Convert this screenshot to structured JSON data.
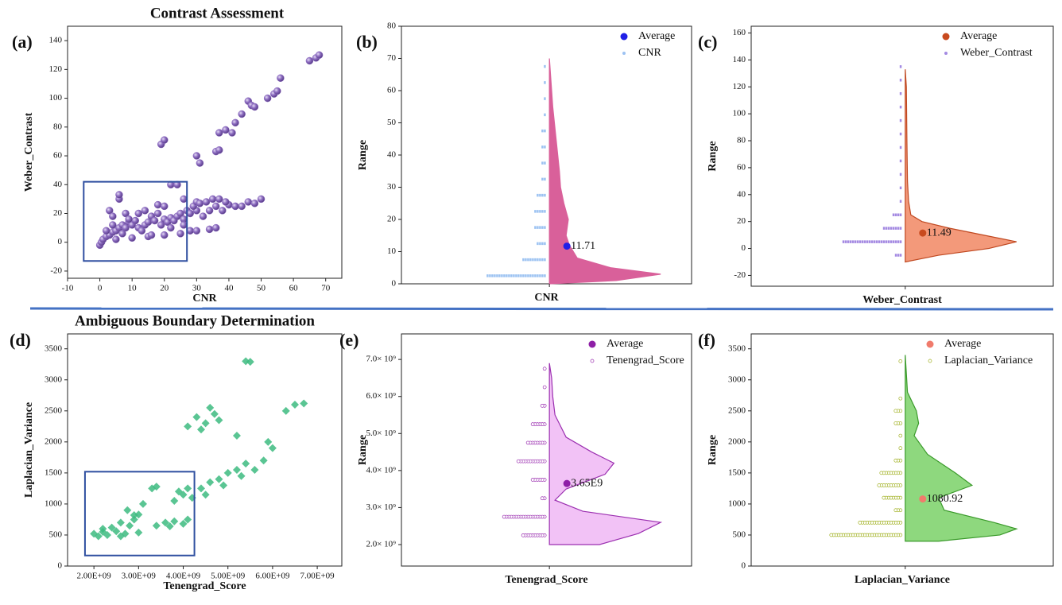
{
  "chart_data": [
    {
      "type": "scatter",
      "panel": "(a)",
      "title": "Contrast Assessment",
      "xlabel": "CNR",
      "ylabel": "Weber_Contrast",
      "xlim": [
        -10,
        75
      ],
      "xticks": [
        -10,
        0,
        10,
        20,
        30,
        40,
        50,
        60,
        70
      ],
      "ylim": [
        -25,
        150
      ],
      "yticks": [
        -20,
        0,
        20,
        40,
        60,
        80,
        100,
        120,
        140
      ],
      "color": "#8c6cc0",
      "marker": "sphere",
      "x": [
        0,
        0.5,
        1,
        2,
        3,
        4,
        5,
        6,
        7,
        8,
        9,
        10,
        11,
        12,
        13,
        14,
        15,
        16,
        17,
        18,
        19,
        20,
        21,
        22,
        23,
        24,
        25,
        26,
        27,
        28,
        30,
        32,
        34,
        36,
        38,
        40,
        44,
        46,
        48,
        50,
        5,
        10,
        15,
        20,
        25,
        28,
        30,
        34,
        36,
        6,
        6,
        3,
        4,
        8,
        14,
        18,
        20,
        22,
        24,
        19,
        20,
        30,
        31,
        36,
        37,
        37,
        39,
        41,
        42,
        44,
        46,
        47,
        48,
        52,
        54,
        55,
        56,
        65,
        67,
        68,
        26,
        29,
        30,
        31,
        33,
        35,
        37,
        39,
        42,
        2,
        4,
        7,
        9,
        12,
        16,
        22,
        26
      ],
      "y": [
        -2,
        0,
        2,
        4,
        5,
        7,
        8,
        10,
        12,
        10,
        14,
        12,
        15,
        10,
        8,
        12,
        14,
        18,
        15,
        20,
        12,
        16,
        14,
        17,
        15,
        18,
        20,
        16,
        22,
        20,
        22,
        18,
        22,
        25,
        22,
        26,
        25,
        28,
        27,
        30,
        2,
        3,
        4,
        5,
        6,
        8,
        8,
        9,
        10,
        30,
        33,
        22,
        18,
        20,
        22,
        26,
        25,
        40,
        40,
        68,
        71,
        60,
        55,
        63,
        64,
        76,
        78,
        76,
        83,
        89,
        98,
        95,
        94,
        100,
        103,
        105,
        114,
        126,
        128,
        130,
        30,
        25,
        28,
        27,
        28,
        30,
        30,
        28,
        25,
        8,
        12,
        6,
        16,
        20,
        5,
        10,
        12
      ],
      "box": {
        "x": [
          -5,
          27
        ],
        "y": [
          -13,
          42
        ],
        "color": "#2f4fa0"
      }
    },
    {
      "type": "violin",
      "panel": "(b)",
      "xlabel": "CNR",
      "ylabel": "Range",
      "ylim": [
        0,
        80
      ],
      "yticks": [
        0,
        10,
        20,
        30,
        40,
        50,
        60,
        70,
        80
      ],
      "average": {
        "name": "Average",
        "color": "#2020e6",
        "value": 11.71
      },
      "strip": {
        "name": "CNR",
        "color": "#9cc2f2",
        "marker": "dash",
        "values": [
          2.5,
          7.5,
          12.5,
          17.5,
          22.5,
          27.5,
          32.5,
          37.5,
          42.5,
          47.5,
          52.5,
          57.5,
          62.5,
          67.5
        ],
        "counts": [
          25,
          10,
          4,
          5,
          5,
          4,
          2,
          2,
          2,
          2,
          1,
          1,
          1,
          1
        ]
      },
      "violin": {
        "color": "#d9609a",
        "edge": "#d9609a",
        "y": [
          0,
          1,
          3,
          5,
          8,
          12,
          15,
          20,
          25,
          30,
          35,
          45,
          55,
          65,
          70
        ],
        "density": [
          0,
          0.6,
          1.0,
          0.55,
          0.25,
          0.18,
          0.15,
          0.17,
          0.13,
          0.1,
          0.09,
          0.06,
          0.03,
          0.01,
          0
        ]
      }
    },
    {
      "type": "violin",
      "panel": "(c)",
      "xlabel": "Weber_Contrast",
      "ylabel": "Range",
      "ylim": [
        -28,
        165
      ],
      "yticks": [
        -20,
        0,
        20,
        40,
        60,
        80,
        100,
        120,
        140,
        160
      ],
      "average": {
        "name": "Average",
        "color": "#c84a1e",
        "value": 11.49
      },
      "strip": {
        "name": "Weber_Contrast",
        "color": "#a48ae2",
        "marker": "dash",
        "values": [
          -5,
          5,
          15,
          25,
          35,
          45,
          55,
          65,
          75,
          85,
          95,
          105,
          115,
          125,
          135
        ],
        "counts": [
          3,
          25,
          8,
          4,
          1,
          1,
          1,
          1,
          1,
          1,
          1,
          1,
          1,
          1,
          1
        ]
      },
      "violin": {
        "color": "#f3997a",
        "edge": "#c04820",
        "y": [
          -10,
          -5,
          0,
          5,
          10,
          15,
          20,
          25,
          35,
          50,
          80,
          120,
          133
        ],
        "density": [
          0,
          0.3,
          0.75,
          1.0,
          0.7,
          0.4,
          0.15,
          0.05,
          0.03,
          0.02,
          0.015,
          0.01,
          0
        ]
      }
    },
    {
      "type": "scatter",
      "panel": "(d)",
      "title": "Ambiguous Boundary Determination",
      "xlabel": "Tenengrad_Score",
      "ylabel": "Laplacian_Variance",
      "xlim": [
        1410000000.0,
        7550000000.0
      ],
      "xticks": [
        {
          "value": 2000000000.0,
          "label": "2.00E+09"
        },
        {
          "value": 3000000000.0,
          "label": "3.00E+09"
        },
        {
          "value": 4000000000.0,
          "label": "4.00E+09"
        },
        {
          "value": 5000000000.0,
          "label": "5.00E+09"
        },
        {
          "value": 6000000000.0,
          "label": "6.00E+09"
        },
        {
          "value": 7000000000.0,
          "label": "7.00E+09"
        }
      ],
      "ylim": [
        0,
        3740
      ],
      "yticks": [
        0,
        500,
        1000,
        1500,
        2000,
        2500,
        3000,
        3500
      ],
      "color": "#3dbb80",
      "marker": "diamond",
      "x": [
        2000000000.0,
        2100000000.0,
        2200000000.0,
        2300000000.0,
        2400000000.0,
        2500000000.0,
        2600000000.0,
        2700000000.0,
        2800000000.0,
        2900000000.0,
        3000000000.0,
        2200000000.0,
        2600000000.0,
        3000000000.0,
        2750000000.0,
        3100000000.0,
        3300000000.0,
        3400000000.0,
        2900000000.0,
        3400000000.0,
        3600000000.0,
        3800000000.0,
        4000000000.0,
        4100000000.0,
        3700000000.0,
        3800000000.0,
        4000000000.0,
        4100000000.0,
        4200000000.0,
        3900000000.0,
        4400000000.0,
        4600000000.0,
        4800000000.0,
        5000000000.0,
        5200000000.0,
        5400000000.0,
        5600000000.0,
        5800000000.0,
        4500000000.0,
        4900000000.0,
        5300000000.0,
        6000000000.0,
        5900000000.0,
        4100000000.0,
        4300000000.0,
        4500000000.0,
        4600000000.0,
        4700000000.0,
        4400000000.0,
        4800000000.0,
        5400000000.0,
        5500000000.0,
        6500000000.0,
        6700000000.0,
        6300000000.0,
        5200000000.0
      ],
      "y": [
        520,
        480,
        550,
        500,
        620,
        560,
        700,
        520,
        650,
        750,
        540,
        600,
        480,
        830,
        900,
        1000,
        1250,
        1280,
        820,
        650,
        700,
        720,
        680,
        750,
        640,
        1050,
        1150,
        1250,
        1100,
        1200,
        1250,
        1350,
        1400,
        1500,
        1550,
        1650,
        1550,
        1700,
        1150,
        1300,
        1450,
        1900,
        2000,
        2250,
        2400,
        2300,
        2550,
        2450,
        2200,
        2350,
        3300,
        3290,
        2600,
        2620,
        2500,
        2100
      ],
      "box": {
        "x": [
          1800000000.0,
          4250000000.0
        ],
        "y": [
          170,
          1520
        ],
        "color": "#2f4fa0"
      }
    },
    {
      "type": "violin",
      "panel": "(e)",
      "xlabel": "Tenengrad_Score",
      "ylabel": "Range",
      "ylim": [
        1420000000.0,
        7690000000.0
      ],
      "yticks": [
        {
          "value": 2000000000.0,
          "label": "2.0× 10⁹"
        },
        {
          "value": 3000000000.0,
          "label": "3.0× 10⁹"
        },
        {
          "value": 4000000000.0,
          "label": "4.0× 10⁹"
        },
        {
          "value": 5000000000.0,
          "label": "5.0× 10⁹"
        },
        {
          "value": 6000000000.0,
          "label": "6.0× 10⁹"
        },
        {
          "value": 7000000000.0,
          "label": "7.0× 10⁹"
        }
      ],
      "average": {
        "name": "Average",
        "color": "#8e1fa6",
        "value": 3650000000,
        "value_label": "3.65E9"
      },
      "strip": {
        "name": "Tenengrad_Score",
        "color": "#9b2fb0",
        "marker": "ring",
        "values": [
          2250000000.0,
          2750000000.0,
          3250000000.0,
          3750000000.0,
          4250000000.0,
          4750000000.0,
          5250000000.0,
          5750000000.0,
          6250000000.0,
          6750000000.0
        ],
        "counts": [
          10,
          18,
          2,
          6,
          12,
          8,
          6,
          2,
          1,
          1
        ]
      },
      "violin": {
        "color": "#f2c2f6",
        "edge": "#9b2fb0",
        "y": [
          2000000000.0,
          2300000000.0,
          2600000000.0,
          2900000000.0,
          3200000000.0,
          3500000000.0,
          3900000000.0,
          4200000000.0,
          4500000000.0,
          4900000000.0,
          5500000000.0,
          6000000000.0,
          6500000000.0,
          6900000000.0
        ],
        "density": [
          0.45,
          0.8,
          1.0,
          0.3,
          0.05,
          0.15,
          0.5,
          0.58,
          0.38,
          0.15,
          0.05,
          0.03,
          0.02,
          0
        ]
      }
    },
    {
      "type": "violin",
      "panel": "(f)",
      "xlabel": "Laplacian_Variance",
      "ylabel": "Range",
      "ylim": [
        0,
        3740
      ],
      "yticks": [
        0,
        500,
        1000,
        1500,
        2000,
        2500,
        3000,
        3500
      ],
      "average": {
        "name": "Average",
        "color": "#f07b6c",
        "value": 1080.92
      },
      "strip": {
        "name": "Laplacian_Variance",
        "color": "#a0b020",
        "marker": "ring",
        "values": [
          500,
          700,
          900,
          1100,
          1300,
          1500,
          1700,
          1900,
          2100,
          2300,
          2500,
          2700,
          3300
        ],
        "counts": [
          30,
          18,
          3,
          8,
          10,
          9,
          3,
          1,
          1,
          3,
          3,
          1,
          1
        ]
      },
      "violin": {
        "color": "#8ed87e",
        "edge": "#3a9a2a",
        "y": [
          400,
          500,
          600,
          700,
          900,
          1100,
          1300,
          1500,
          1800,
          2100,
          2300,
          2500,
          2800,
          3100,
          3400
        ],
        "density": [
          0.3,
          0.85,
          1.0,
          0.8,
          0.35,
          0.3,
          0.6,
          0.45,
          0.2,
          0.08,
          0.12,
          0.1,
          0.02,
          0.01,
          0
        ]
      }
    }
  ]
}
